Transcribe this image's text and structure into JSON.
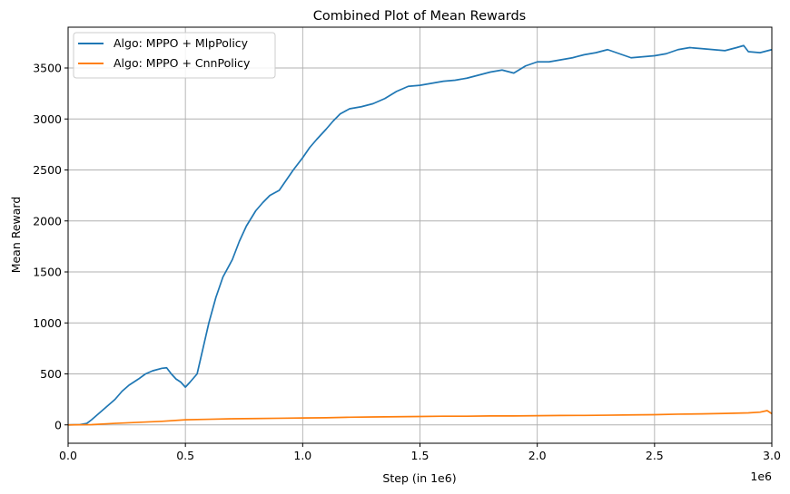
{
  "chart_data": {
    "type": "line",
    "title": "Combined Plot of Mean Rewards",
    "xlabel": "Step (in 1e6)",
    "ylabel": "Mean Reward",
    "x_offset_label": "1e6",
    "xlim": [
      0,
      3.0
    ],
    "ylim": [
      -180,
      3900
    ],
    "x_ticks": [
      0.0,
      0.5,
      1.0,
      1.5,
      2.0,
      2.5,
      3.0
    ],
    "x_tick_labels": [
      "0.0",
      "0.5",
      "1.0",
      "1.5",
      "2.0",
      "2.5",
      "3.0"
    ],
    "y_ticks": [
      0,
      500,
      1000,
      1500,
      2000,
      2500,
      3000,
      3500
    ],
    "y_tick_labels": [
      "0",
      "500",
      "1000",
      "1500",
      "2000",
      "2500",
      "3000",
      "3500"
    ],
    "grid": true,
    "legend_position": "top-left",
    "series": [
      {
        "name": "Algo: MPPO + MlpPolicy",
        "color": "#1f77b4",
        "points": [
          [
            0.0,
            0
          ],
          [
            0.05,
            2
          ],
          [
            0.08,
            15
          ],
          [
            0.1,
            50
          ],
          [
            0.13,
            110
          ],
          [
            0.16,
            170
          ],
          [
            0.2,
            250
          ],
          [
            0.23,
            330
          ],
          [
            0.26,
            390
          ],
          [
            0.3,
            450
          ],
          [
            0.33,
            500
          ],
          [
            0.36,
            530
          ],
          [
            0.4,
            555
          ],
          [
            0.42,
            560
          ],
          [
            0.44,
            500
          ],
          [
            0.46,
            450
          ],
          [
            0.48,
            420
          ],
          [
            0.5,
            370
          ],
          [
            0.52,
            420
          ],
          [
            0.55,
            500
          ],
          [
            0.57,
            700
          ],
          [
            0.6,
            1000
          ],
          [
            0.63,
            1250
          ],
          [
            0.66,
            1450
          ],
          [
            0.7,
            1620
          ],
          [
            0.73,
            1800
          ],
          [
            0.76,
            1950
          ],
          [
            0.8,
            2100
          ],
          [
            0.83,
            2180
          ],
          [
            0.86,
            2250
          ],
          [
            0.9,
            2300
          ],
          [
            0.93,
            2400
          ],
          [
            0.96,
            2500
          ],
          [
            1.0,
            2620
          ],
          [
            1.03,
            2720
          ],
          [
            1.06,
            2800
          ],
          [
            1.1,
            2900
          ],
          [
            1.13,
            2980
          ],
          [
            1.16,
            3050
          ],
          [
            1.2,
            3100
          ],
          [
            1.25,
            3120
          ],
          [
            1.3,
            3150
          ],
          [
            1.35,
            3200
          ],
          [
            1.4,
            3270
          ],
          [
            1.45,
            3320
          ],
          [
            1.5,
            3330
          ],
          [
            1.55,
            3350
          ],
          [
            1.6,
            3370
          ],
          [
            1.65,
            3380
          ],
          [
            1.7,
            3400
          ],
          [
            1.75,
            3430
          ],
          [
            1.8,
            3460
          ],
          [
            1.85,
            3480
          ],
          [
            1.9,
            3450
          ],
          [
            1.95,
            3520
          ],
          [
            2.0,
            3560
          ],
          [
            2.05,
            3560
          ],
          [
            2.1,
            3580
          ],
          [
            2.15,
            3600
          ],
          [
            2.2,
            3630
          ],
          [
            2.25,
            3650
          ],
          [
            2.3,
            3680
          ],
          [
            2.35,
            3640
          ],
          [
            2.4,
            3600
          ],
          [
            2.45,
            3610
          ],
          [
            2.5,
            3620
          ],
          [
            2.55,
            3640
          ],
          [
            2.6,
            3680
          ],
          [
            2.65,
            3700
          ],
          [
            2.7,
            3690
          ],
          [
            2.75,
            3680
          ],
          [
            2.8,
            3670
          ],
          [
            2.85,
            3700
          ],
          [
            2.88,
            3720
          ],
          [
            2.9,
            3660
          ],
          [
            2.95,
            3650
          ],
          [
            3.0,
            3680
          ]
        ]
      },
      {
        "name": "Algo: MPPO + CnnPolicy",
        "color": "#ff7f0e",
        "points": [
          [
            0.0,
            0
          ],
          [
            0.1,
            2
          ],
          [
            0.2,
            15
          ],
          [
            0.3,
            25
          ],
          [
            0.4,
            35
          ],
          [
            0.5,
            50
          ],
          [
            0.6,
            55
          ],
          [
            0.7,
            60
          ],
          [
            0.8,
            62
          ],
          [
            0.9,
            65
          ],
          [
            1.0,
            68
          ],
          [
            1.1,
            70
          ],
          [
            1.2,
            75
          ],
          [
            1.3,
            78
          ],
          [
            1.4,
            80
          ],
          [
            1.5,
            82
          ],
          [
            1.6,
            85
          ],
          [
            1.7,
            85
          ],
          [
            1.8,
            88
          ],
          [
            1.9,
            88
          ],
          [
            2.0,
            90
          ],
          [
            2.1,
            92
          ],
          [
            2.2,
            93
          ],
          [
            2.3,
            95
          ],
          [
            2.4,
            98
          ],
          [
            2.5,
            100
          ],
          [
            2.6,
            105
          ],
          [
            2.7,
            108
          ],
          [
            2.8,
            112
          ],
          [
            2.9,
            118
          ],
          [
            2.95,
            125
          ],
          [
            2.98,
            140
          ],
          [
            3.0,
            110
          ]
        ]
      }
    ]
  }
}
